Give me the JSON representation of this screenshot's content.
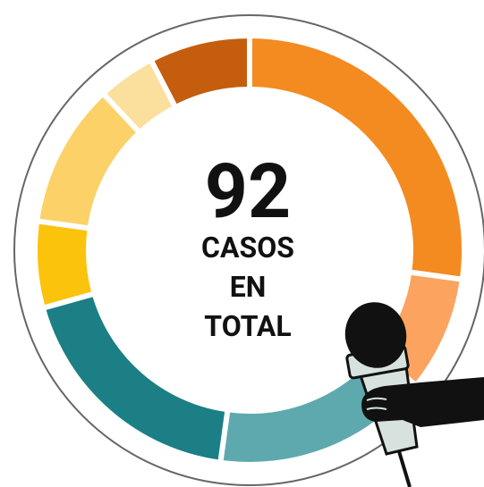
{
  "chart_data": {
    "type": "donut",
    "values": [
      25,
      8,
      15,
      17,
      6,
      10,
      4,
      7
    ],
    "colors": [
      "#f38b20",
      "#fca35f",
      "#5ea9ad",
      "#1b7f85",
      "#fcc30d",
      "#fcd168",
      "#fbdf9c",
      "#c45e0e"
    ],
    "center_value": 92,
    "center_label": [
      "CASOS",
      "EN",
      "TOTAL"
    ]
  }
}
